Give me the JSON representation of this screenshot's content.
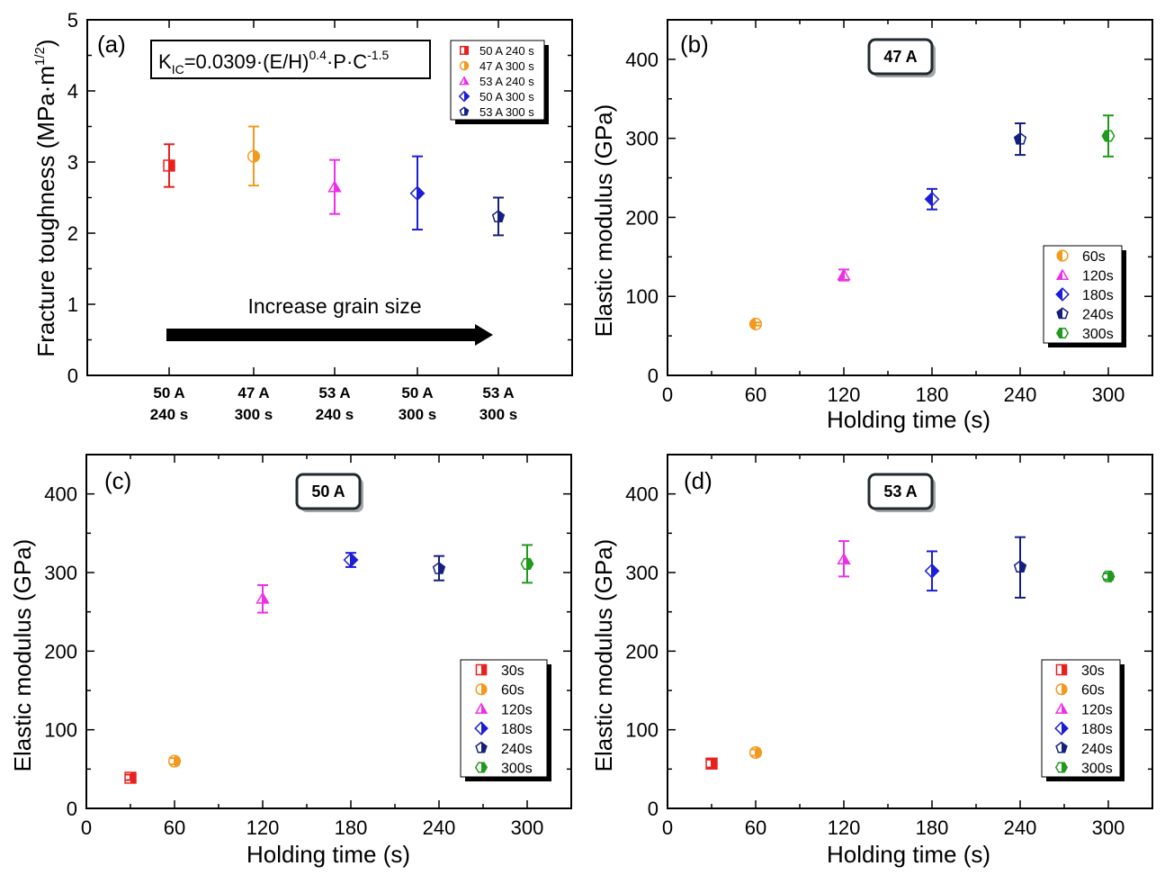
{
  "chart_data": [
    {
      "panel": "(a)",
      "type": "scatter",
      "xlabel": "",
      "ylabel": "Fracture toughness (MPa·m",
      "ylabel_sup": "1/2",
      "ylabel_close": ")",
      "ylim": [
        0,
        5
      ],
      "yticks": [
        0,
        1,
        2,
        3,
        4,
        5
      ],
      "categories": [
        {
          "line1": "50 A",
          "line2": "240 s"
        },
        {
          "line1": "47 A",
          "line2": "300 s"
        },
        {
          "line1": "53 A",
          "line2": "240 s"
        },
        {
          "line1": "50 A",
          "line2": "300 s"
        },
        {
          "line1": "53 A",
          "line2": "300 s"
        }
      ],
      "points": [
        {
          "name": "50 A 240 s",
          "y": 2.95,
          "err": [
            2.65,
            3.25
          ],
          "marker": "square",
          "color": "#e8201e"
        },
        {
          "name": "47 A 300 s",
          "y": 3.08,
          "err": [
            2.67,
            3.5
          ],
          "marker": "circle",
          "color": "#f39a1e"
        },
        {
          "name": "53 A 240 s",
          "y": 2.65,
          "err": [
            2.27,
            3.03
          ],
          "marker": "triangle",
          "color": "#ee2fe8"
        },
        {
          "name": "50 A 300 s",
          "y": 2.56,
          "err": [
            2.05,
            3.08
          ],
          "marker": "diamond",
          "color": "#1c1ed4"
        },
        {
          "name": "53 A 300 s",
          "y": 2.23,
          "err": [
            1.97,
            2.5
          ],
          "marker": "pentagon",
          "color": "#141f80"
        }
      ],
      "formula": {
        "k": "K",
        "k_sub": "IC",
        "a": "=0.0309·(E/H)",
        "a_sup": "0.4",
        "b": "·P·C",
        "b_sup": "-1.5"
      },
      "annotation": "Increase grain size",
      "legend": [
        "50 A 240 s",
        "47 A 300 s",
        "53 A 240 s",
        "50 A 300 s",
        "53 A 300 s"
      ]
    },
    {
      "panel": "(b)",
      "type": "scatter",
      "badge": "47 A",
      "xlabel": "Holding time (s)",
      "ylabel": "Elastic modulus (GPa)",
      "xlim": [
        0,
        330
      ],
      "ylim": [
        0,
        450
      ],
      "xticks": [
        0,
        60,
        120,
        180,
        240,
        300
      ],
      "yticks": [
        0,
        100,
        200,
        300,
        400
      ],
      "series": [
        {
          "name": "60s",
          "x": 60,
          "y": 65,
          "err": [
            63,
            67
          ],
          "marker": "circle",
          "color": "#f39a1e"
        },
        {
          "name": "120s",
          "x": 120,
          "y": 127,
          "err": [
            120,
            134
          ],
          "marker": "triangle",
          "color": "#ee2fe8"
        },
        {
          "name": "180s",
          "x": 180,
          "y": 223,
          "err": [
            210,
            236
          ],
          "marker": "diamond",
          "color": "#1c1ed4"
        },
        {
          "name": "240s",
          "x": 240,
          "y": 299,
          "err": [
            279,
            319
          ],
          "marker": "pentagon",
          "color": "#141f80"
        },
        {
          "name": "300s",
          "x": 300,
          "y": 303,
          "err": [
            277,
            329
          ],
          "marker": "hexagon",
          "color": "#1f9a1c"
        }
      ]
    },
    {
      "panel": "(c)",
      "type": "scatter",
      "badge": "50 A",
      "xlabel": "Holding time (s)",
      "ylabel": "Elastic modulus (GPa)",
      "xlim": [
        0,
        330
      ],
      "ylim": [
        0,
        450
      ],
      "xticks": [
        0,
        60,
        120,
        180,
        240,
        300
      ],
      "yticks": [
        0,
        100,
        200,
        300,
        400
      ],
      "series": [
        {
          "name": "30s",
          "x": 30,
          "y": 39,
          "err": [
            36,
            43
          ],
          "marker": "square",
          "color": "#e8201e"
        },
        {
          "name": "60s",
          "x": 60,
          "y": 60,
          "err": [
            56,
            64
          ],
          "marker": "circle",
          "color": "#f39a1e"
        },
        {
          "name": "120s",
          "x": 120,
          "y": 267,
          "err": [
            249,
            284
          ],
          "marker": "triangle",
          "color": "#ee2fe8"
        },
        {
          "name": "180s",
          "x": 180,
          "y": 316,
          "err": [
            307,
            325
          ],
          "marker": "diamond",
          "color": "#1c1ed4"
        },
        {
          "name": "240s",
          "x": 240,
          "y": 305,
          "err": [
            290,
            321
          ],
          "marker": "pentagon",
          "color": "#141f80"
        },
        {
          "name": "300s",
          "x": 300,
          "y": 311,
          "err": [
            287,
            335
          ],
          "marker": "hexagon",
          "color": "#1f9a1c"
        }
      ]
    },
    {
      "panel": "(d)",
      "type": "scatter",
      "badge": "53 A",
      "xlabel": "Holding time (s)",
      "ylabel": "Elastic modulus (GPa)",
      "xlim": [
        0,
        330
      ],
      "ylim": [
        0,
        450
      ],
      "xticks": [
        0,
        60,
        120,
        180,
        240,
        300
      ],
      "yticks": [
        0,
        100,
        200,
        300,
        400
      ],
      "series": [
        {
          "name": "30s",
          "x": 30,
          "y": 57,
          "err": [
            52,
            62
          ],
          "marker": "square",
          "color": "#e8201e"
        },
        {
          "name": "60s",
          "x": 60,
          "y": 71,
          "err": [
            67,
            75
          ],
          "marker": "circle",
          "color": "#f39a1e"
        },
        {
          "name": "120s",
          "x": 120,
          "y": 317,
          "err": [
            295,
            340
          ],
          "marker": "triangle",
          "color": "#ee2fe8"
        },
        {
          "name": "180s",
          "x": 180,
          "y": 302,
          "err": [
            277,
            327
          ],
          "marker": "diamond",
          "color": "#1c1ed4"
        },
        {
          "name": "240s",
          "x": 240,
          "y": 307,
          "err": [
            268,
            345
          ],
          "marker": "pentagon",
          "color": "#141f80"
        },
        {
          "name": "300s",
          "x": 300,
          "y": 295,
          "err": [
            291,
            299
          ],
          "marker": "hexagon",
          "color": "#1f9a1c"
        }
      ]
    }
  ]
}
